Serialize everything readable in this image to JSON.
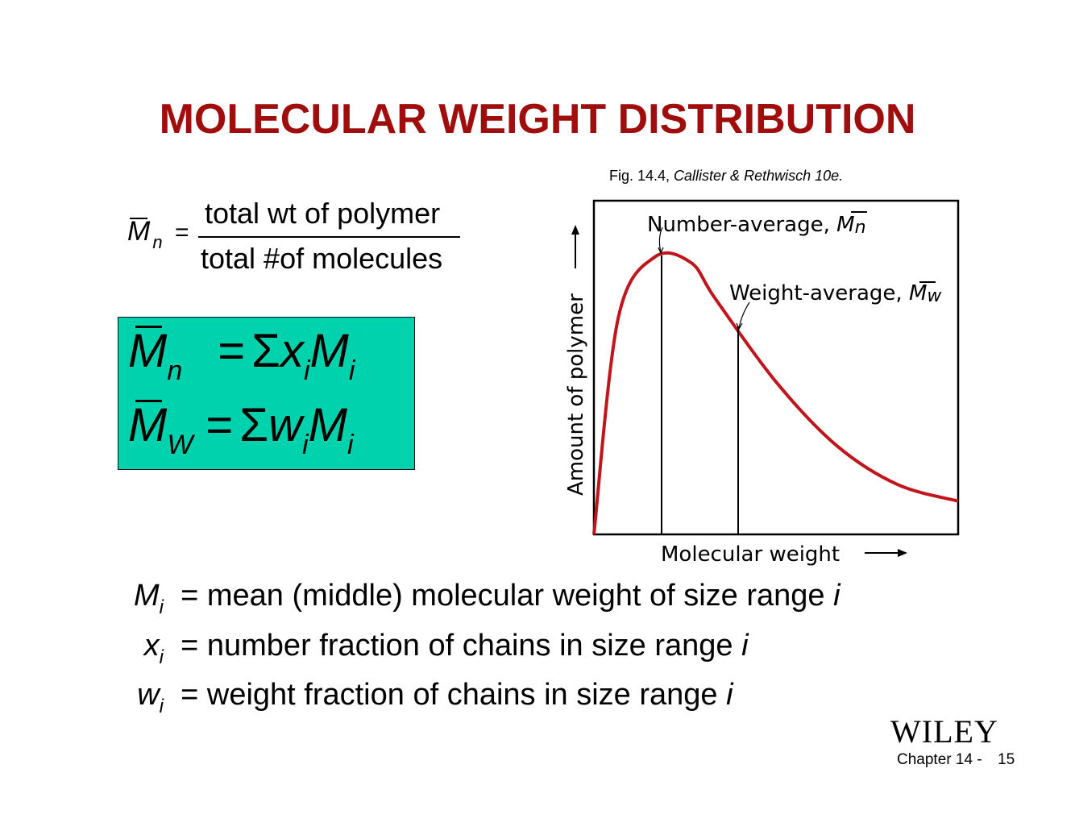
{
  "title": "MOLECULAR WEIGHT DISTRIBUTION",
  "caption": {
    "fig": "Fig. 14.4, ",
    "source": "Callister & Rethwisch 10e."
  },
  "definition": {
    "symbol": "M",
    "subscript": "n",
    "equals": "=",
    "numerator": "total wt of polymer",
    "denominator": "total #of molecules"
  },
  "formula_box": {
    "color": "#00d2ae",
    "row1": {
      "lhs": "M",
      "lhs_sub": "n",
      "eq": "=",
      "sigma": "Σ",
      "v": "x",
      "v_sub": "i",
      "m": "M",
      "m_sub": "i"
    },
    "row2": {
      "lhs": "M",
      "lhs_sub": "W",
      "eq": "=",
      "sigma": "Σ",
      "v": "w",
      "v_sub": "i",
      "m": "M",
      "m_sub": "i"
    }
  },
  "chart_data": {
    "type": "line",
    "curve_color": "#c0151b",
    "xlabel": "Molecular weight",
    "ylabel": "Amount of polymer",
    "annotations": [
      {
        "text": "Number-average, ",
        "symbol": "M",
        "sub": "n"
      },
      {
        "text": "Weight-average, ",
        "symbol": "M",
        "sub": "w"
      }
    ],
    "series": [
      {
        "points": [
          [
            0,
            0.0
          ],
          [
            0.2,
            0.78
          ],
          [
            0.5,
            1.0
          ],
          [
            0.8,
            0.98
          ],
          [
            1.0,
            0.85
          ],
          [
            1.5,
            0.55
          ],
          [
            2.0,
            0.32
          ],
          [
            2.5,
            0.18
          ],
          [
            3.0,
            0.12
          ]
        ]
      }
    ]
  },
  "definitions": [
    {
      "sym": "M",
      "sub": "i",
      "text": "= mean (middle) molecular weight of size range ",
      "var": "i"
    },
    {
      "sym": "x",
      "sub": "i",
      "text": "= number fraction of chains in size range ",
      "var": "i"
    },
    {
      "sym": "w",
      "sub": "i",
      "text": "= weight fraction of chains in size range ",
      "var": "i"
    }
  ],
  "brand": "WILEY",
  "footer": {
    "chapter": "Chapter 14 - ",
    "page": "15"
  }
}
